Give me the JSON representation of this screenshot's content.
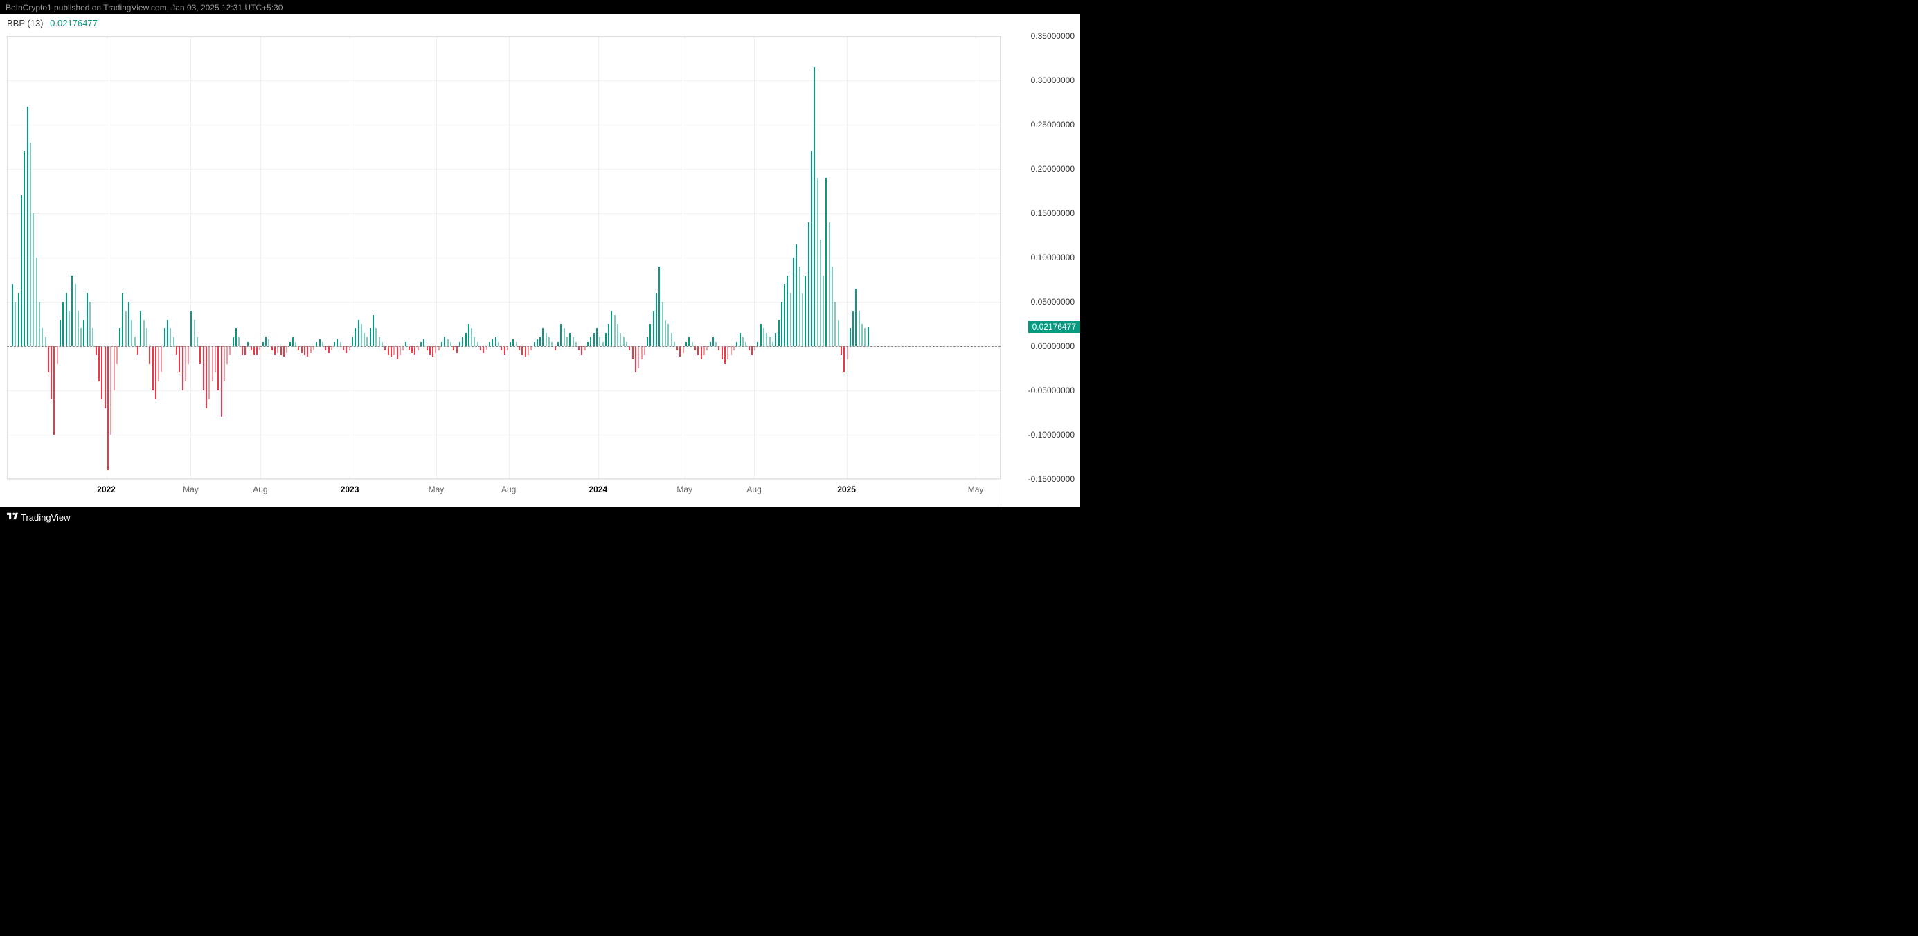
{
  "header": {
    "publisher_text": "BeInCrypto1 published on TradingView.com, Jan 03, 2025 12:31 UTC+5:30"
  },
  "indicator": {
    "name": "BBP (13)",
    "current_value": "0.02176477",
    "value_color": "#089981"
  },
  "footer": {
    "brand": "TradingView"
  },
  "chart": {
    "type": "bar",
    "background_color": "#ffffff",
    "grid_color": "#f0f0f0",
    "positive_color": "#089981",
    "negative_color": "#f23645",
    "positive_color_light": "rgba(8,153,129,0.5)",
    "negative_color_light": "rgba(242,54,69,0.5)",
    "zero_line_color": "#888888",
    "axis_text_color": "#333333",
    "ylim": [
      -0.15,
      0.35
    ],
    "ytick_step": 0.05,
    "yticks": [
      {
        "value": 0.35,
        "label": "0.35000000"
      },
      {
        "value": 0.3,
        "label": "0.30000000"
      },
      {
        "value": 0.25,
        "label": "0.25000000"
      },
      {
        "value": 0.2,
        "label": "0.20000000"
      },
      {
        "value": 0.15,
        "label": "0.15000000"
      },
      {
        "value": 0.1,
        "label": "0.10000000"
      },
      {
        "value": 0.05,
        "label": "0.05000000"
      },
      {
        "value": 0.0,
        "label": "0.00000000"
      },
      {
        "value": -0.05,
        "label": "-0.05000000"
      },
      {
        "value": -0.1,
        "label": "-0.10000000"
      },
      {
        "value": -0.15,
        "label": "-0.15000000"
      }
    ],
    "current_badge": {
      "value": 0.02176477,
      "label": "0.02176477"
    },
    "xticks": [
      {
        "pos": 0.1,
        "label": "2022",
        "bold": true
      },
      {
        "pos": 0.185,
        "label": "May",
        "bold": false
      },
      {
        "pos": 0.255,
        "label": "Aug",
        "bold": false
      },
      {
        "pos": 0.345,
        "label": "2023",
        "bold": true
      },
      {
        "pos": 0.432,
        "label": "May",
        "bold": false
      },
      {
        "pos": 0.505,
        "label": "Aug",
        "bold": false
      },
      {
        "pos": 0.595,
        "label": "2024",
        "bold": true
      },
      {
        "pos": 0.682,
        "label": "May",
        "bold": false
      },
      {
        "pos": 0.752,
        "label": "Aug",
        "bold": false
      },
      {
        "pos": 0.845,
        "label": "2025",
        "bold": true
      },
      {
        "pos": 0.975,
        "label": "May",
        "bold": false
      }
    ],
    "bars": [
      {
        "x": 0.005,
        "v": 0.07
      },
      {
        "x": 0.008,
        "v": 0.05
      },
      {
        "x": 0.011,
        "v": 0.06
      },
      {
        "x": 0.014,
        "v": 0.17
      },
      {
        "x": 0.017,
        "v": 0.22
      },
      {
        "x": 0.02,
        "v": 0.27
      },
      {
        "x": 0.023,
        "v": 0.23
      },
      {
        "x": 0.026,
        "v": 0.15
      },
      {
        "x": 0.029,
        "v": 0.1
      },
      {
        "x": 0.032,
        "v": 0.05
      },
      {
        "x": 0.035,
        "v": 0.02
      },
      {
        "x": 0.038,
        "v": 0.01
      },
      {
        "x": 0.041,
        "v": -0.03
      },
      {
        "x": 0.044,
        "v": -0.06
      },
      {
        "x": 0.047,
        "v": -0.1
      },
      {
        "x": 0.05,
        "v": -0.02
      },
      {
        "x": 0.053,
        "v": 0.03
      },
      {
        "x": 0.056,
        "v": 0.05
      },
      {
        "x": 0.059,
        "v": 0.06
      },
      {
        "x": 0.062,
        "v": 0.04
      },
      {
        "x": 0.065,
        "v": 0.08
      },
      {
        "x": 0.068,
        "v": 0.07
      },
      {
        "x": 0.071,
        "v": 0.04
      },
      {
        "x": 0.074,
        "v": 0.02
      },
      {
        "x": 0.077,
        "v": 0.03
      },
      {
        "x": 0.08,
        "v": 0.06
      },
      {
        "x": 0.083,
        "v": 0.05
      },
      {
        "x": 0.086,
        "v": 0.02
      },
      {
        "x": 0.089,
        "v": -0.01
      },
      {
        "x": 0.092,
        "v": -0.04
      },
      {
        "x": 0.095,
        "v": -0.06
      },
      {
        "x": 0.098,
        "v": -0.07
      },
      {
        "x": 0.101,
        "v": -0.14
      },
      {
        "x": 0.104,
        "v": -0.1
      },
      {
        "x": 0.107,
        "v": -0.05
      },
      {
        "x": 0.11,
        "v": -0.02
      },
      {
        "x": 0.113,
        "v": 0.02
      },
      {
        "x": 0.116,
        "v": 0.06
      },
      {
        "x": 0.119,
        "v": 0.04
      },
      {
        "x": 0.122,
        "v": 0.05
      },
      {
        "x": 0.125,
        "v": 0.03
      },
      {
        "x": 0.128,
        "v": 0.01
      },
      {
        "x": 0.131,
        "v": -0.01
      },
      {
        "x": 0.134,
        "v": 0.04
      },
      {
        "x": 0.137,
        "v": 0.03
      },
      {
        "x": 0.14,
        "v": 0.02
      },
      {
        "x": 0.143,
        "v": -0.02
      },
      {
        "x": 0.146,
        "v": -0.05
      },
      {
        "x": 0.149,
        "v": -0.06
      },
      {
        "x": 0.152,
        "v": -0.04
      },
      {
        "x": 0.155,
        "v": -0.03
      },
      {
        "x": 0.158,
        "v": 0.02
      },
      {
        "x": 0.161,
        "v": 0.03
      },
      {
        "x": 0.164,
        "v": 0.02
      },
      {
        "x": 0.167,
        "v": 0.01
      },
      {
        "x": 0.17,
        "v": -0.01
      },
      {
        "x": 0.173,
        "v": -0.03
      },
      {
        "x": 0.176,
        "v": -0.05
      },
      {
        "x": 0.179,
        "v": -0.04
      },
      {
        "x": 0.182,
        "v": -0.02
      },
      {
        "x": 0.185,
        "v": 0.04
      },
      {
        "x": 0.188,
        "v": 0.03
      },
      {
        "x": 0.191,
        "v": 0.01
      },
      {
        "x": 0.194,
        "v": -0.02
      },
      {
        "x": 0.197,
        "v": -0.05
      },
      {
        "x": 0.2,
        "v": -0.07
      },
      {
        "x": 0.203,
        "v": -0.06
      },
      {
        "x": 0.206,
        "v": -0.04
      },
      {
        "x": 0.209,
        "v": -0.03
      },
      {
        "x": 0.212,
        "v": -0.05
      },
      {
        "x": 0.215,
        "v": -0.08
      },
      {
        "x": 0.218,
        "v": -0.04
      },
      {
        "x": 0.221,
        "v": -0.02
      },
      {
        "x": 0.224,
        "v": -0.01
      },
      {
        "x": 0.227,
        "v": 0.01
      },
      {
        "x": 0.23,
        "v": 0.02
      },
      {
        "x": 0.233,
        "v": 0.01
      },
      {
        "x": 0.236,
        "v": -0.01
      },
      {
        "x": 0.239,
        "v": -0.01
      },
      {
        "x": 0.242,
        "v": 0.005
      },
      {
        "x": 0.245,
        "v": -0.005
      },
      {
        "x": 0.248,
        "v": -0.01
      },
      {
        "x": 0.251,
        "v": -0.01
      },
      {
        "x": 0.254,
        "v": -0.005
      },
      {
        "x": 0.257,
        "v": 0.005
      },
      {
        "x": 0.26,
        "v": 0.01
      },
      {
        "x": 0.263,
        "v": 0.008
      },
      {
        "x": 0.266,
        "v": -0.005
      },
      {
        "x": 0.269,
        "v": -0.01
      },
      {
        "x": 0.272,
        "v": -0.008
      },
      {
        "x": 0.275,
        "v": -0.01
      },
      {
        "x": 0.278,
        "v": -0.012
      },
      {
        "x": 0.281,
        "v": -0.008
      },
      {
        "x": 0.284,
        "v": 0.005
      },
      {
        "x": 0.287,
        "v": 0.01
      },
      {
        "x": 0.29,
        "v": 0.005
      },
      {
        "x": 0.293,
        "v": -0.005
      },
      {
        "x": 0.296,
        "v": -0.008
      },
      {
        "x": 0.299,
        "v": -0.01
      },
      {
        "x": 0.302,
        "v": -0.012
      },
      {
        "x": 0.305,
        "v": -0.008
      },
      {
        "x": 0.308,
        "v": -0.005
      },
      {
        "x": 0.311,
        "v": 0.005
      },
      {
        "x": 0.314,
        "v": 0.008
      },
      {
        "x": 0.317,
        "v": 0.005
      },
      {
        "x": 0.32,
        "v": -0.005
      },
      {
        "x": 0.323,
        "v": -0.008
      },
      {
        "x": 0.326,
        "v": -0.005
      },
      {
        "x": 0.329,
        "v": 0.005
      },
      {
        "x": 0.332,
        "v": 0.008
      },
      {
        "x": 0.335,
        "v": 0.005
      },
      {
        "x": 0.338,
        "v": -0.005
      },
      {
        "x": 0.341,
        "v": -0.008
      },
      {
        "x": 0.344,
        "v": -0.005
      },
      {
        "x": 0.347,
        "v": 0.01
      },
      {
        "x": 0.35,
        "v": 0.02
      },
      {
        "x": 0.353,
        "v": 0.03
      },
      {
        "x": 0.356,
        "v": 0.025
      },
      {
        "x": 0.359,
        "v": 0.015
      },
      {
        "x": 0.362,
        "v": 0.01
      },
      {
        "x": 0.365,
        "v": 0.02
      },
      {
        "x": 0.368,
        "v": 0.035
      },
      {
        "x": 0.371,
        "v": 0.02
      },
      {
        "x": 0.374,
        "v": 0.01
      },
      {
        "x": 0.377,
        "v": 0.005
      },
      {
        "x": 0.38,
        "v": -0.005
      },
      {
        "x": 0.383,
        "v": -0.01
      },
      {
        "x": 0.386,
        "v": -0.012
      },
      {
        "x": 0.389,
        "v": -0.01
      },
      {
        "x": 0.392,
        "v": -0.015
      },
      {
        "x": 0.395,
        "v": -0.01
      },
      {
        "x": 0.398,
        "v": -0.005
      },
      {
        "x": 0.401,
        "v": 0.005
      },
      {
        "x": 0.404,
        "v": -0.005
      },
      {
        "x": 0.407,
        "v": -0.008
      },
      {
        "x": 0.41,
        "v": -0.01
      },
      {
        "x": 0.413,
        "v": -0.005
      },
      {
        "x": 0.416,
        "v": 0.005
      },
      {
        "x": 0.419,
        "v": 0.008
      },
      {
        "x": 0.422,
        "v": -0.005
      },
      {
        "x": 0.425,
        "v": -0.01
      },
      {
        "x": 0.428,
        "v": -0.012
      },
      {
        "x": 0.431,
        "v": -0.008
      },
      {
        "x": 0.434,
        "v": -0.005
      },
      {
        "x": 0.437,
        "v": 0.005
      },
      {
        "x": 0.44,
        "v": 0.01
      },
      {
        "x": 0.443,
        "v": 0.008
      },
      {
        "x": 0.446,
        "v": 0.005
      },
      {
        "x": 0.449,
        "v": -0.005
      },
      {
        "x": 0.452,
        "v": -0.008
      },
      {
        "x": 0.455,
        "v": 0.005
      },
      {
        "x": 0.458,
        "v": 0.01
      },
      {
        "x": 0.461,
        "v": 0.015
      },
      {
        "x": 0.464,
        "v": 0.025
      },
      {
        "x": 0.467,
        "v": 0.02
      },
      {
        "x": 0.47,
        "v": 0.01
      },
      {
        "x": 0.473,
        "v": 0.005
      },
      {
        "x": 0.476,
        "v": -0.005
      },
      {
        "x": 0.479,
        "v": -0.008
      },
      {
        "x": 0.482,
        "v": -0.005
      },
      {
        "x": 0.485,
        "v": 0.005
      },
      {
        "x": 0.488,
        "v": 0.008
      },
      {
        "x": 0.491,
        "v": 0.01
      },
      {
        "x": 0.494,
        "v": 0.005
      },
      {
        "x": 0.497,
        "v": -0.005
      },
      {
        "x": 0.5,
        "v": -0.01
      },
      {
        "x": 0.503,
        "v": -0.005
      },
      {
        "x": 0.506,
        "v": 0.005
      },
      {
        "x": 0.509,
        "v": 0.008
      },
      {
        "x": 0.512,
        "v": 0.005
      },
      {
        "x": 0.515,
        "v": -0.005
      },
      {
        "x": 0.518,
        "v": -0.01
      },
      {
        "x": 0.521,
        "v": -0.012
      },
      {
        "x": 0.524,
        "v": -0.01
      },
      {
        "x": 0.527,
        "v": -0.005
      },
      {
        "x": 0.53,
        "v": 0.005
      },
      {
        "x": 0.533,
        "v": 0.008
      },
      {
        "x": 0.536,
        "v": 0.01
      },
      {
        "x": 0.539,
        "v": 0.02
      },
      {
        "x": 0.542,
        "v": 0.015
      },
      {
        "x": 0.545,
        "v": 0.01
      },
      {
        "x": 0.548,
        "v": 0.005
      },
      {
        "x": 0.551,
        "v": -0.005
      },
      {
        "x": 0.554,
        "v": 0.005
      },
      {
        "x": 0.557,
        "v": 0.025
      },
      {
        "x": 0.56,
        "v": 0.02
      },
      {
        "x": 0.563,
        "v": 0.01
      },
      {
        "x": 0.566,
        "v": 0.015
      },
      {
        "x": 0.569,
        "v": 0.01
      },
      {
        "x": 0.572,
        "v": 0.005
      },
      {
        "x": 0.575,
        "v": -0.005
      },
      {
        "x": 0.578,
        "v": -0.01
      },
      {
        "x": 0.581,
        "v": -0.005
      },
      {
        "x": 0.584,
        "v": 0.005
      },
      {
        "x": 0.587,
        "v": 0.01
      },
      {
        "x": 0.59,
        "v": 0.015
      },
      {
        "x": 0.593,
        "v": 0.02
      },
      {
        "x": 0.596,
        "v": 0.01
      },
      {
        "x": 0.599,
        "v": 0.005
      },
      {
        "x": 0.602,
        "v": 0.015
      },
      {
        "x": 0.605,
        "v": 0.025
      },
      {
        "x": 0.608,
        "v": 0.04
      },
      {
        "x": 0.611,
        "v": 0.035
      },
      {
        "x": 0.614,
        "v": 0.025
      },
      {
        "x": 0.617,
        "v": 0.015
      },
      {
        "x": 0.62,
        "v": 0.01
      },
      {
        "x": 0.623,
        "v": 0.005
      },
      {
        "x": 0.626,
        "v": -0.005
      },
      {
        "x": 0.629,
        "v": -0.015
      },
      {
        "x": 0.632,
        "v": -0.03
      },
      {
        "x": 0.635,
        "v": -0.025
      },
      {
        "x": 0.638,
        "v": -0.015
      },
      {
        "x": 0.641,
        "v": -0.01
      },
      {
        "x": 0.644,
        "v": 0.01
      },
      {
        "x": 0.647,
        "v": 0.025
      },
      {
        "x": 0.65,
        "v": 0.04
      },
      {
        "x": 0.653,
        "v": 0.06
      },
      {
        "x": 0.656,
        "v": 0.09
      },
      {
        "x": 0.659,
        "v": 0.05
      },
      {
        "x": 0.662,
        "v": 0.03
      },
      {
        "x": 0.665,
        "v": 0.025
      },
      {
        "x": 0.668,
        "v": 0.015
      },
      {
        "x": 0.671,
        "v": 0.005
      },
      {
        "x": 0.674,
        "v": -0.005
      },
      {
        "x": 0.677,
        "v": -0.012
      },
      {
        "x": 0.68,
        "v": -0.008
      },
      {
        "x": 0.683,
        "v": 0.005
      },
      {
        "x": 0.686,
        "v": 0.01
      },
      {
        "x": 0.689,
        "v": 0.005
      },
      {
        "x": 0.692,
        "v": -0.005
      },
      {
        "x": 0.695,
        "v": -0.01
      },
      {
        "x": 0.698,
        "v": -0.015
      },
      {
        "x": 0.701,
        "v": -0.01
      },
      {
        "x": 0.704,
        "v": -0.005
      },
      {
        "x": 0.707,
        "v": 0.005
      },
      {
        "x": 0.71,
        "v": 0.01
      },
      {
        "x": 0.713,
        "v": 0.005
      },
      {
        "x": 0.716,
        "v": -0.005
      },
      {
        "x": 0.719,
        "v": -0.015
      },
      {
        "x": 0.722,
        "v": -0.02
      },
      {
        "x": 0.725,
        "v": -0.015
      },
      {
        "x": 0.728,
        "v": -0.01
      },
      {
        "x": 0.731,
        "v": -0.005
      },
      {
        "x": 0.734,
        "v": 0.005
      },
      {
        "x": 0.737,
        "v": 0.015
      },
      {
        "x": 0.74,
        "v": 0.01
      },
      {
        "x": 0.743,
        "v": 0.005
      },
      {
        "x": 0.746,
        "v": -0.005
      },
      {
        "x": 0.749,
        "v": -0.01
      },
      {
        "x": 0.752,
        "v": -0.005
      },
      {
        "x": 0.755,
        "v": 0.005
      },
      {
        "x": 0.758,
        "v": 0.025
      },
      {
        "x": 0.761,
        "v": 0.02
      },
      {
        "x": 0.764,
        "v": 0.015
      },
      {
        "x": 0.767,
        "v": 0.01
      },
      {
        "x": 0.77,
        "v": 0.005
      },
      {
        "x": 0.773,
        "v": 0.015
      },
      {
        "x": 0.776,
        "v": 0.03
      },
      {
        "x": 0.779,
        "v": 0.05
      },
      {
        "x": 0.782,
        "v": 0.07
      },
      {
        "x": 0.785,
        "v": 0.08
      },
      {
        "x": 0.788,
        "v": 0.06
      },
      {
        "x": 0.791,
        "v": 0.1
      },
      {
        "x": 0.794,
        "v": 0.115
      },
      {
        "x": 0.797,
        "v": 0.09
      },
      {
        "x": 0.8,
        "v": 0.06
      },
      {
        "x": 0.803,
        "v": 0.08
      },
      {
        "x": 0.806,
        "v": 0.14
      },
      {
        "x": 0.809,
        "v": 0.22
      },
      {
        "x": 0.812,
        "v": 0.315
      },
      {
        "x": 0.815,
        "v": 0.19
      },
      {
        "x": 0.818,
        "v": 0.12
      },
      {
        "x": 0.821,
        "v": 0.08
      },
      {
        "x": 0.824,
        "v": 0.19
      },
      {
        "x": 0.827,
        "v": 0.14
      },
      {
        "x": 0.83,
        "v": 0.09
      },
      {
        "x": 0.833,
        "v": 0.05
      },
      {
        "x": 0.836,
        "v": 0.03
      },
      {
        "x": 0.839,
        "v": -0.01
      },
      {
        "x": 0.842,
        "v": -0.03
      },
      {
        "x": 0.845,
        "v": -0.015
      },
      {
        "x": 0.848,
        "v": 0.02
      },
      {
        "x": 0.851,
        "v": 0.04
      },
      {
        "x": 0.854,
        "v": 0.065
      },
      {
        "x": 0.857,
        "v": 0.04
      },
      {
        "x": 0.86,
        "v": 0.025
      },
      {
        "x": 0.863,
        "v": 0.02
      },
      {
        "x": 0.866,
        "v": 0.022
      }
    ]
  }
}
